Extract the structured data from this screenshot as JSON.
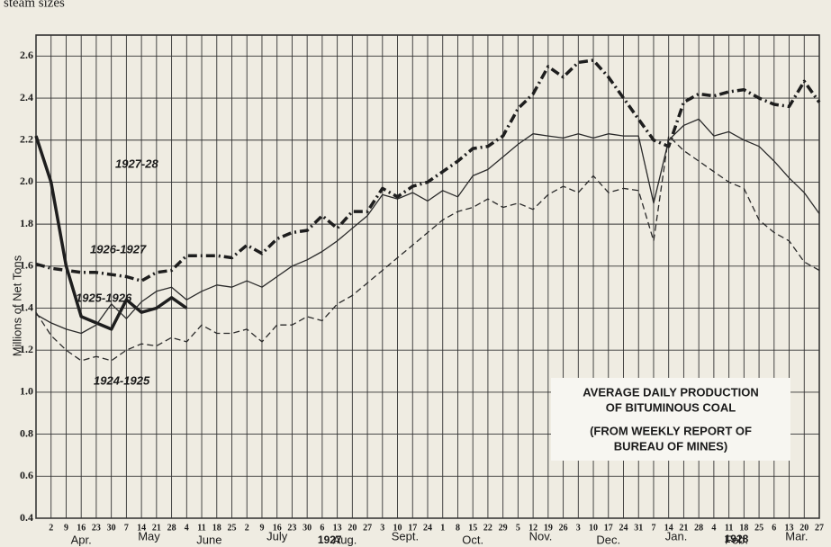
{
  "header_text": "steam sizes",
  "chart_data": {
    "type": "line",
    "ylabel": "Millions of Net Tons",
    "annotation_lines": [
      "AVERAGE DAILY PRODUCTION",
      "OF BITUMINOUS COAL",
      "(FROM WEEKLY REPORT OF",
      "BUREAU OF MINES)"
    ],
    "months": [
      "Apr.",
      "May",
      "June",
      "July",
      "Aug.",
      "Sept.",
      "Oct.",
      "Nov.",
      "Dec.",
      "Jan.",
      "Feb.",
      "Mar."
    ],
    "years": [
      "1927",
      "1928"
    ],
    "categories": [
      null,
      "2",
      "9",
      "16",
      "23",
      "30",
      "7",
      "14",
      "21",
      "28",
      "4",
      "11",
      "18",
      "25",
      "2",
      "9",
      "16",
      "23",
      "30",
      "6",
      "13",
      "20",
      "27",
      "3",
      "10",
      "17",
      "24",
      "1",
      "8",
      "15",
      "22",
      "29",
      "5",
      "12",
      "19",
      "26",
      "3",
      "10",
      "17",
      "24",
      "31",
      "7",
      "14",
      "21",
      "28",
      "4",
      "11",
      "18",
      "25",
      "6",
      "13",
      "20",
      "27"
    ],
    "ylim": [
      0.4,
      2.7
    ],
    "yticks": [
      0.4,
      0.6,
      0.8,
      {
        "value": 1.0,
        "label": "1.0"
      },
      1.2,
      1.4,
      1.6,
      1.8,
      {
        "value": 2.0,
        "label": "2.0"
      },
      2.2,
      2.4,
      2.6
    ],
    "grid": true,
    "series": [
      {
        "name": "1927-28",
        "color": "#1e1e1e",
        "linestyle": "solid",
        "linewidth": 3.5,
        "values": [
          2.22,
          2.0,
          1.6,
          1.36,
          1.33,
          1.3,
          1.44,
          1.38,
          1.4,
          1.45,
          1.4,
          null,
          null,
          null,
          null,
          null,
          null,
          null,
          null,
          null,
          null,
          null,
          null,
          null,
          null,
          null,
          null,
          null,
          null,
          null,
          null,
          null,
          null,
          null,
          null,
          null,
          null,
          null,
          null,
          null,
          null,
          null,
          null,
          null,
          null,
          null,
          null,
          null,
          null,
          null,
          null,
          null,
          null
        ]
      },
      {
        "name": "1926-1927",
        "color": "#1e1e1e",
        "linestyle": "dashdot",
        "linewidth": 3.5,
        "values": [
          1.61,
          1.59,
          1.58,
          1.57,
          1.57,
          1.56,
          1.55,
          1.53,
          1.57,
          1.58,
          1.65,
          1.65,
          1.65,
          1.64,
          1.7,
          1.66,
          1.73,
          1.76,
          1.77,
          1.84,
          1.78,
          1.86,
          1.86,
          1.97,
          1.93,
          1.98,
          2.0,
          2.05,
          2.1,
          2.16,
          2.17,
          2.22,
          2.35,
          2.42,
          2.55,
          2.5,
          2.57,
          2.58,
          2.5,
          2.4,
          2.3,
          2.2,
          2.17,
          2.38,
          2.42,
          2.41,
          2.43,
          2.44,
          2.4,
          2.37,
          2.36,
          2.48,
          2.38
        ]
      },
      {
        "name": "1925-1926",
        "color": "#2a2a2a",
        "linestyle": "solid",
        "linewidth": 1.3,
        "values": [
          1.37,
          1.33,
          1.3,
          1.28,
          1.32,
          1.42,
          1.35,
          1.43,
          1.48,
          1.5,
          1.44,
          1.48,
          1.51,
          1.5,
          1.53,
          1.5,
          1.55,
          1.6,
          1.63,
          1.67,
          1.72,
          1.78,
          1.84,
          1.94,
          1.92,
          1.95,
          1.91,
          1.96,
          1.93,
          2.03,
          2.06,
          2.12,
          2.18,
          2.23,
          2.22,
          2.21,
          2.23,
          2.21,
          2.23,
          2.22,
          2.22,
          1.9,
          2.2,
          2.27,
          2.3,
          2.22,
          2.24,
          2.2,
          2.17,
          2.1,
          2.02,
          1.95,
          1.85
        ]
      },
      {
        "name": "1924-1925",
        "color": "#2a2a2a",
        "linestyle": "dashed",
        "linewidth": 1.3,
        "values": [
          1.38,
          1.27,
          1.2,
          1.15,
          1.17,
          1.15,
          1.2,
          1.23,
          1.22,
          1.26,
          1.24,
          1.32,
          1.28,
          1.28,
          1.3,
          1.24,
          1.32,
          1.32,
          1.36,
          1.34,
          1.42,
          1.46,
          1.52,
          1.58,
          1.64,
          1.7,
          1.76,
          1.82,
          1.86,
          1.88,
          1.92,
          1.88,
          1.9,
          1.87,
          1.94,
          1.98,
          1.95,
          2.03,
          1.95,
          1.97,
          1.96,
          1.72,
          2.22,
          2.15,
          2.1,
          2.05,
          2.0,
          1.97,
          1.82,
          1.76,
          1.72,
          1.62,
          1.58
        ]
      }
    ]
  }
}
